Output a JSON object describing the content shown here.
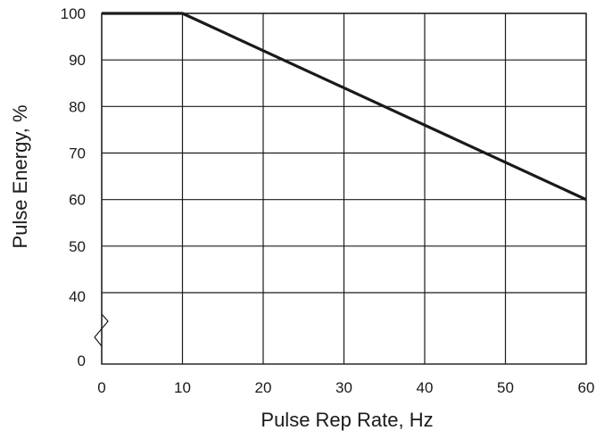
{
  "chart_data": {
    "type": "line",
    "title": "",
    "xlabel": "Pulse Rep Rate, Hz",
    "ylabel": "Pulse Energy, %",
    "xlim": [
      0,
      60
    ],
    "ylim": [
      0,
      100
    ],
    "x_ticks": [
      "0",
      "10",
      "20",
      "30",
      "40",
      "50",
      "60"
    ],
    "y_ticks": [
      "0",
      "40",
      "50",
      "60",
      "70",
      "80",
      "90",
      "100"
    ],
    "y_axis_break": "between 0 and 40",
    "grid": true,
    "legend": "none",
    "series": [
      {
        "x": [
          0,
          10,
          60
        ],
        "y": [
          100,
          100,
          60
        ]
      }
    ]
  }
}
